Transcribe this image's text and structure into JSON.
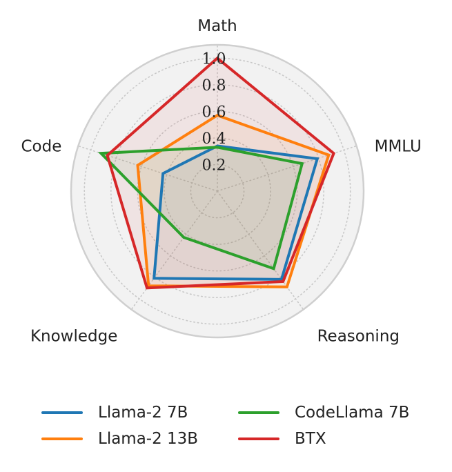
{
  "chart_data": {
    "type": "radar",
    "axes": [
      "Math",
      "MMLU",
      "Reasoning",
      "Knowledge",
      "Code"
    ],
    "rlim": [
      0,
      1.1
    ],
    "ticks": [
      "0.2",
      "0.4",
      "0.6",
      "0.8",
      "1.0"
    ],
    "tick_values": [
      0.2,
      0.4,
      0.6,
      0.8,
      1.0
    ],
    "grid": true,
    "legend_position": "bottom",
    "series": [
      {
        "name": "Llama-2 7B",
        "color": "#1f77b4",
        "values": [
          0.34,
          0.79,
          0.82,
          0.81,
          0.43
        ]
      },
      {
        "name": "Llama-2 13B",
        "color": "#ff7f0e",
        "values": [
          0.57,
          0.88,
          0.89,
          0.88,
          0.63
        ]
      },
      {
        "name": "CodeLlama 7B",
        "color": "#2ca02c",
        "values": [
          0.33,
          0.67,
          0.72,
          0.43,
          0.92
        ]
      },
      {
        "name": "BTX",
        "color": "#d62728",
        "values": [
          1.0,
          0.92,
          0.84,
          0.9,
          0.87
        ]
      }
    ]
  }
}
